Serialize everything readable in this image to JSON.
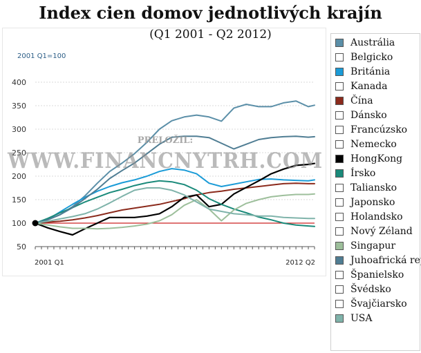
{
  "title": "Index cien domov jednotlivých krajín",
  "subtitle": "(Q1 2001 - Q2 2012)",
  "watermark": {
    "small": "PRELOŽIL:",
    "big": "WWW.FINANCNYTRH.COM"
  },
  "chart_data": {
    "type": "line",
    "ylabel": "2001 Q1=100",
    "ylim": [
      50,
      400
    ],
    "yticks": [
      50,
      100,
      150,
      200,
      250,
      300,
      350,
      400
    ],
    "x": [
      2001.0,
      2001.5,
      2002.0,
      2002.5,
      2003.0,
      2003.5,
      2004.0,
      2004.5,
      2005.0,
      2005.5,
      2006.0,
      2006.5,
      2007.0,
      2007.5,
      2008.0,
      2008.5,
      2009.0,
      2009.5,
      2010.0,
      2010.5,
      2011.0,
      2011.5,
      2012.0,
      2012.25
    ],
    "xlim": [
      2001.0,
      2012.25
    ],
    "x_tick_labels": [
      {
        "x": 2001.0,
        "label": "2001 Q1"
      },
      {
        "x": 2012.25,
        "label": "2012 Q2"
      }
    ],
    "reference_line": {
      "y": 100,
      "color": "#cc2222"
    },
    "start_marker": {
      "x": 2001.0,
      "y": 100
    },
    "series": [
      {
        "name": "Austrália",
        "color": "#5b8fa8",
        "values": [
          100,
          107,
          118,
          135,
          158,
          185,
          210,
          228,
          248,
          272,
          300,
          318,
          326,
          330,
          326,
          317,
          345,
          353,
          348,
          348,
          356,
          360,
          348,
          351
        ]
      },
      {
        "name": "Británia",
        "color": "#1a9bd7",
        "values": [
          100,
          108,
          124,
          140,
          155,
          168,
          178,
          186,
          192,
          200,
          210,
          216,
          213,
          205,
          185,
          178,
          183,
          188,
          193,
          194,
          192,
          191,
          190,
          192
        ]
      },
      {
        "name": "Čína",
        "color": "#8b2a1c",
        "values": [
          100,
          102,
          104,
          107,
          111,
          116,
          122,
          128,
          132,
          136,
          140,
          146,
          152,
          160,
          165,
          168,
          172,
          175,
          178,
          181,
          184,
          185,
          184,
          184
        ]
      },
      {
        "name": "HongKong",
        "color": "#000000",
        "values": [
          100,
          90,
          82,
          75,
          88,
          100,
          112,
          112,
          112,
          115,
          120,
          135,
          155,
          160,
          135,
          140,
          162,
          176,
          190,
          205,
          215,
          223,
          225,
          227
        ]
      },
      {
        "name": "Írsko",
        "color": "#1a8a7a",
        "values": [
          100,
          110,
          122,
          133,
          145,
          155,
          165,
          172,
          180,
          186,
          190,
          188,
          182,
          170,
          152,
          140,
          130,
          122,
          113,
          107,
          100,
          96,
          94,
          93
        ]
      },
      {
        "name": "Singapur",
        "color": "#9dbf9b",
        "values": [
          100,
          96,
          92,
          89,
          89,
          88,
          89,
          91,
          94,
          98,
          105,
          118,
          138,
          150,
          130,
          105,
          128,
          142,
          150,
          156,
          159,
          161,
          161,
          162
        ]
      },
      {
        "name": "Juhoafrická rep",
        "color": "#4f7d93",
        "values": [
          100,
          107,
          118,
          133,
          152,
          172,
          195,
          212,
          228,
          248,
          268,
          283,
          285,
          285,
          282,
          270,
          258,
          268,
          278,
          282,
          284,
          285,
          283,
          284
        ]
      },
      {
        "name": "USA",
        "color": "#7fb3aa",
        "values": [
          100,
          104,
          109,
          114,
          120,
          130,
          143,
          157,
          170,
          175,
          175,
          170,
          160,
          145,
          130,
          125,
          120,
          118,
          115,
          115,
          112,
          111,
          110,
          110
        ]
      }
    ]
  },
  "legend": {
    "items": [
      {
        "label": "Austrália",
        "color": "#5b8fa8"
      },
      {
        "label": "Belgicko",
        "color": "#ffffff"
      },
      {
        "label": "Británia",
        "color": "#1a9bd7"
      },
      {
        "label": "Kanada",
        "color": "#ffffff"
      },
      {
        "label": "Čína",
        "color": "#8b2a1c"
      },
      {
        "label": "Dánsko",
        "color": "#ffffff"
      },
      {
        "label": "Francúzsko",
        "color": "#ffffff"
      },
      {
        "label": "Nemecko",
        "color": "#ffffff"
      },
      {
        "label": "HongKong",
        "color": "#000000"
      },
      {
        "label": "Írsko",
        "color": "#1a8a7a"
      },
      {
        "label": "Taliansko",
        "color": "#ffffff"
      },
      {
        "label": "Japonsko",
        "color": "#ffffff"
      },
      {
        "label": "Holandsko",
        "color": "#ffffff"
      },
      {
        "label": "Nový Zéland",
        "color": "#ffffff"
      },
      {
        "label": "Singapur",
        "color": "#9dbf9b"
      },
      {
        "label": "Juhoafrická rep",
        "color": "#4f7d93"
      },
      {
        "label": "Španielsko",
        "color": "#ffffff"
      },
      {
        "label": "Švédsko",
        "color": "#ffffff"
      },
      {
        "label": "Švajčiarsko",
        "color": "#ffffff"
      },
      {
        "label": "USA",
        "color": "#7fb3aa"
      }
    ]
  }
}
